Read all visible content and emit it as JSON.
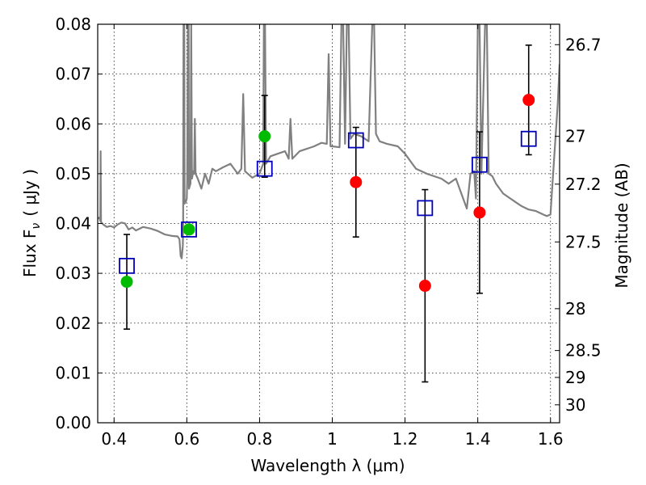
{
  "chart_data": {
    "type": "scatter",
    "xlabel": "Wavelength  λ (μm)",
    "ylabel": "Flux  F",
    "ylabel_sub": "ν",
    "ylabel_unit": "( μJy )",
    "y2label": "Magnitude (AB)",
    "xlim": [
      0.355,
      1.625
    ],
    "ylim": [
      0.0,
      0.08
    ],
    "grid": true,
    "x_ticks": [
      0.4,
      0.6,
      0.8,
      1.0,
      1.2,
      1.4,
      1.6
    ],
    "x_tick_labels": [
      "0.4",
      "0.6",
      "0.8",
      "1",
      "1.2",
      "1.4",
      "1.6"
    ],
    "y_ticks": [
      0.0,
      0.01,
      0.02,
      0.03,
      0.04,
      0.05,
      0.06,
      0.07,
      0.08
    ],
    "y_tick_labels": [
      "0.00",
      "0.01",
      "0.02",
      "0.03",
      "0.04",
      "0.05",
      "0.06",
      "0.07",
      "0.08"
    ],
    "y2_ticks": [
      {
        "label": "26.7",
        "flux": 0.0759
      },
      {
        "label": "27",
        "flux": 0.0575
      },
      {
        "label": "27.2",
        "flux": 0.0479
      },
      {
        "label": "27.5",
        "flux": 0.0363
      },
      {
        "label": "28",
        "flux": 0.0229
      },
      {
        "label": "28.5",
        "flux": 0.0145
      },
      {
        "label": "29",
        "flux": 0.0091
      },
      {
        "label": "30",
        "flux": 0.0036
      }
    ],
    "colors": {
      "model": "#808080",
      "detection": "#00bb00",
      "low_sn": "#ff0000",
      "model_band": "#0000bb",
      "errorbar": "#000000"
    },
    "series": [
      {
        "points": [
          {
            "x": 0.435,
            "y": 0.0283,
            "yerr": 0.0095
          },
          {
            "x": 0.606,
            "y": 0.0388
          },
          {
            "x": 0.814,
            "y": 0.0575,
            "yerr": 0.0082
          }
        ]
      },
      {
        "points": [
          {
            "x": 1.065,
            "y": 0.0483,
            "yerr": 0.011
          },
          {
            "x": 1.255,
            "y": 0.0275,
            "yerr": 0.0193
          },
          {
            "x": 1.405,
            "y": 0.0422,
            "yerr": 0.0162
          },
          {
            "x": 1.54,
            "y": 0.0648,
            "yerr": 0.011
          }
        ]
      },
      {
        "points": [
          {
            "x": 0.435,
            "y": 0.0315
          },
          {
            "x": 0.606,
            "y": 0.0388
          },
          {
            "x": 0.814,
            "y": 0.051
          },
          {
            "x": 1.065,
            "y": 0.0567
          },
          {
            "x": 1.255,
            "y": 0.0431
          },
          {
            "x": 1.405,
            "y": 0.0518
          },
          {
            "x": 1.54,
            "y": 0.057
          }
        ]
      },
      {
        "line": [
          [
            0.355,
            0.041
          ],
          [
            0.36,
            0.0412
          ],
          [
            0.362,
            0.0405
          ],
          [
            0.363,
            0.0545
          ],
          [
            0.364,
            0.0403
          ],
          [
            0.37,
            0.0398
          ],
          [
            0.38,
            0.0393
          ],
          [
            0.39,
            0.0395
          ],
          [
            0.4,
            0.0392
          ],
          [
            0.41,
            0.0398
          ],
          [
            0.42,
            0.0402
          ],
          [
            0.43,
            0.04
          ],
          [
            0.44,
            0.0388
          ],
          [
            0.45,
            0.0392
          ],
          [
            0.46,
            0.0386
          ],
          [
            0.48,
            0.0393
          ],
          [
            0.5,
            0.039
          ],
          [
            0.52,
            0.0385
          ],
          [
            0.54,
            0.0378
          ],
          [
            0.56,
            0.0375
          ],
          [
            0.575,
            0.0374
          ],
          [
            0.58,
            0.0368
          ],
          [
            0.583,
            0.0335
          ],
          [
            0.586,
            0.033
          ],
          [
            0.589,
            0.0355
          ],
          [
            0.59,
            0.0395
          ],
          [
            0.591,
            0.082
          ],
          [
            0.593,
            0.082
          ],
          [
            0.594,
            0.044
          ],
          [
            0.598,
            0.0445
          ],
          [
            0.6,
            0.045
          ],
          [
            0.601,
            0.0485
          ],
          [
            0.603,
            0.082
          ],
          [
            0.605,
            0.082
          ],
          [
            0.606,
            0.047
          ],
          [
            0.61,
            0.048
          ],
          [
            0.612,
            0.082
          ],
          [
            0.614,
            0.049
          ],
          [
            0.618,
            0.0505
          ],
          [
            0.62,
            0.05
          ],
          [
            0.622,
            0.061
          ],
          [
            0.624,
            0.05
          ],
          [
            0.63,
            0.049
          ],
          [
            0.64,
            0.047
          ],
          [
            0.65,
            0.05
          ],
          [
            0.66,
            0.048
          ],
          [
            0.67,
            0.051
          ],
          [
            0.68,
            0.0505
          ],
          [
            0.7,
            0.0513
          ],
          [
            0.72,
            0.052
          ],
          [
            0.74,
            0.05
          ],
          [
            0.75,
            0.051
          ],
          [
            0.755,
            0.066
          ],
          [
            0.76,
            0.0505
          ],
          [
            0.78,
            0.0492
          ],
          [
            0.8,
            0.05
          ],
          [
            0.81,
            0.052
          ],
          [
            0.812,
            0.082
          ],
          [
            0.815,
            0.082
          ],
          [
            0.818,
            0.052
          ],
          [
            0.83,
            0.0535
          ],
          [
            0.85,
            0.054
          ],
          [
            0.87,
            0.0545
          ],
          [
            0.88,
            0.053
          ],
          [
            0.885,
            0.061
          ],
          [
            0.89,
            0.053
          ],
          [
            0.91,
            0.0545
          ],
          [
            0.93,
            0.055
          ],
          [
            0.95,
            0.0555
          ],
          [
            0.97,
            0.0562
          ],
          [
            0.985,
            0.056
          ],
          [
            0.99,
            0.074
          ],
          [
            0.995,
            0.0555
          ],
          [
            1.0,
            0.0555
          ],
          [
            1.02,
            0.0553
          ],
          [
            1.025,
            0.082
          ],
          [
            1.03,
            0.082
          ],
          [
            1.035,
            0.056
          ],
          [
            1.04,
            0.082
          ],
          [
            1.045,
            0.082
          ],
          [
            1.05,
            0.057
          ],
          [
            1.06,
            0.058
          ],
          [
            1.08,
            0.0575
          ],
          [
            1.1,
            0.0565
          ],
          [
            1.11,
            0.082
          ],
          [
            1.115,
            0.082
          ],
          [
            1.12,
            0.058
          ],
          [
            1.13,
            0.0565
          ],
          [
            1.15,
            0.056
          ],
          [
            1.18,
            0.0555
          ],
          [
            1.2,
            0.054
          ],
          [
            1.22,
            0.052
          ],
          [
            1.23,
            0.051
          ],
          [
            1.26,
            0.05
          ],
          [
            1.28,
            0.0495
          ],
          [
            1.3,
            0.049
          ],
          [
            1.32,
            0.048
          ],
          [
            1.34,
            0.049
          ],
          [
            1.35,
            0.047
          ],
          [
            1.37,
            0.043
          ],
          [
            1.38,
            0.05
          ],
          [
            1.39,
            0.0505
          ],
          [
            1.395,
            0.045
          ],
          [
            1.4,
            0.082
          ],
          [
            1.405,
            0.082
          ],
          [
            1.41,
            0.05
          ],
          [
            1.42,
            0.082
          ],
          [
            1.425,
            0.082
          ],
          [
            1.43,
            0.05
          ],
          [
            1.44,
            0.0495
          ],
          [
            1.45,
            0.048
          ],
          [
            1.46,
            0.047
          ],
          [
            1.47,
            0.046
          ],
          [
            1.48,
            0.0455
          ],
          [
            1.5,
            0.0445
          ],
          [
            1.52,
            0.0435
          ],
          [
            1.54,
            0.0428
          ],
          [
            1.56,
            0.0425
          ],
          [
            1.58,
            0.0418
          ],
          [
            1.59,
            0.0415
          ],
          [
            1.6,
            0.0418
          ],
          [
            1.61,
            0.053
          ],
          [
            1.62,
            0.064
          ],
          [
            1.625,
            0.072
          ]
        ]
      }
    ]
  }
}
